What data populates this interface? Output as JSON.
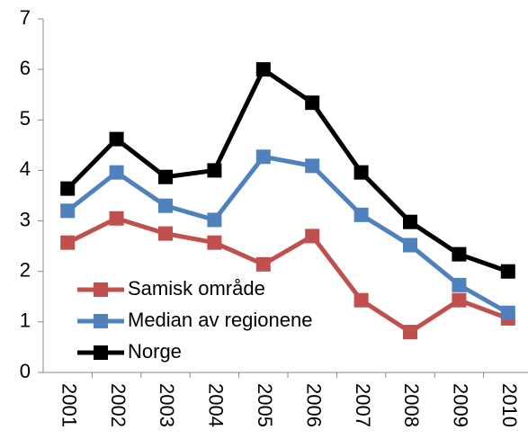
{
  "chart_data": {
    "type": "line",
    "categories": [
      "2001",
      "2002",
      "2003",
      "2004",
      "2005",
      "2006",
      "2007",
      "2008",
      "2009",
      "2010"
    ],
    "series": [
      {
        "name": "Samisk område",
        "color": "#c0504d",
        "values": [
          2.57,
          3.05,
          2.75,
          2.57,
          2.14,
          2.7,
          1.43,
          0.8,
          1.43,
          1.07
        ]
      },
      {
        "name": "Median av regionene",
        "color": "#4f81bd",
        "values": [
          3.2,
          3.96,
          3.3,
          3.02,
          4.27,
          4.09,
          3.12,
          2.52,
          1.73,
          1.18
        ]
      },
      {
        "name": "Norge",
        "color": "#000000",
        "values": [
          3.64,
          4.62,
          3.87,
          4.0,
          6.0,
          5.34,
          3.96,
          2.98,
          2.34,
          2.0
        ]
      }
    ],
    "ylim": [
      0,
      7
    ],
    "yticks": [
      0,
      1,
      2,
      3,
      4,
      5,
      6,
      7
    ],
    "grid": false,
    "legend": "lower left"
  }
}
